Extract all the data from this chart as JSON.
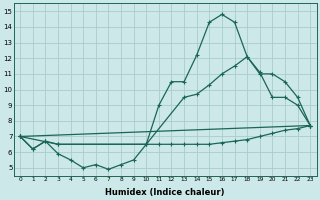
{
  "xlabel": "Humidex (Indice chaleur)",
  "xlim": [
    -0.5,
    23.5
  ],
  "ylim": [
    4.5,
    15.5
  ],
  "yticks": [
    5,
    6,
    7,
    8,
    9,
    10,
    11,
    12,
    13,
    14,
    15
  ],
  "xticks": [
    0,
    1,
    2,
    3,
    4,
    5,
    6,
    7,
    8,
    9,
    10,
    11,
    12,
    13,
    14,
    15,
    16,
    17,
    18,
    19,
    20,
    21,
    22,
    23
  ],
  "bg_color": "#cce8e8",
  "grid_color": "#aacccc",
  "line_color": "#1a6655",
  "line1_x": [
    0,
    1,
    2,
    3,
    10,
    11,
    12,
    13,
    14,
    15,
    16,
    17,
    18,
    19,
    20,
    21,
    22,
    23
  ],
  "line1_y": [
    7.0,
    6.2,
    6.7,
    6.5,
    6.5,
    9.0,
    10.5,
    10.5,
    12.2,
    14.3,
    14.8,
    14.3,
    12.1,
    11.1,
    9.5,
    9.5,
    9.0,
    7.7
  ],
  "line2_x": [
    0,
    23
  ],
  "line2_y": [
    7.0,
    7.7
  ],
  "line3_x": [
    0,
    1,
    2,
    3,
    4,
    5,
    6,
    7,
    8,
    9,
    10,
    11,
    12,
    13,
    14,
    15,
    16,
    17,
    18,
    19,
    20,
    21,
    22,
    23
  ],
  "line3_y": [
    7.0,
    6.2,
    6.7,
    5.9,
    5.5,
    5.0,
    5.2,
    4.9,
    5.2,
    5.5,
    6.5,
    6.5,
    6.5,
    6.5,
    6.5,
    6.5,
    6.6,
    6.7,
    6.8,
    7.0,
    7.2,
    7.4,
    7.5,
    7.7
  ],
  "line4_x": [
    0,
    3,
    10,
    13,
    14,
    15,
    16,
    17,
    18,
    19,
    20,
    21,
    22,
    23
  ],
  "line4_y": [
    7.0,
    6.5,
    6.5,
    9.5,
    9.7,
    10.3,
    11.0,
    11.5,
    12.1,
    11.0,
    11.0,
    10.5,
    9.5,
    7.7
  ]
}
